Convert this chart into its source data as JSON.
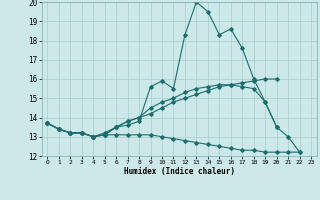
{
  "title": "",
  "xlabel": "Humidex (Indice chaleur)",
  "bg_color": "#cce8e8",
  "grid_color": "#aacccc",
  "line_color": "#1a6e6e",
  "xlim": [
    -0.5,
    23.5
  ],
  "ylim": [
    12,
    20
  ],
  "yticks": [
    12,
    13,
    14,
    15,
    16,
    17,
    18,
    19,
    20
  ],
  "xticks": [
    0,
    1,
    2,
    3,
    4,
    5,
    6,
    7,
    8,
    9,
    10,
    11,
    12,
    13,
    14,
    15,
    16,
    17,
    18,
    19,
    20,
    21,
    22,
    23
  ],
  "line1_x": [
    0,
    1,
    2,
    3,
    4,
    5,
    6,
    7,
    8,
    9,
    10,
    11,
    12,
    13,
    14,
    15,
    16,
    17,
    18,
    19,
    20,
    21,
    22
  ],
  "line1_y": [
    13.7,
    13.4,
    13.2,
    13.2,
    13.0,
    13.1,
    13.5,
    13.6,
    13.8,
    15.6,
    15.9,
    15.5,
    18.3,
    20.0,
    19.5,
    18.3,
    18.6,
    17.6,
    16.0,
    14.8,
    13.5,
    13.0,
    12.2
  ],
  "line2_x": [
    0,
    1,
    2,
    3,
    4,
    5,
    6,
    7,
    8,
    9,
    10,
    11,
    12,
    13,
    14,
    15,
    16,
    17,
    18,
    19,
    20
  ],
  "line2_y": [
    13.7,
    13.4,
    13.2,
    13.2,
    13.0,
    13.1,
    13.5,
    13.8,
    14.0,
    14.2,
    14.5,
    14.8,
    15.0,
    15.2,
    15.4,
    15.6,
    15.7,
    15.8,
    15.9,
    16.0,
    16.0
  ],
  "line3_x": [
    0,
    1,
    2,
    3,
    4,
    5,
    6,
    7,
    8,
    9,
    10,
    11,
    12,
    13,
    14,
    15,
    16,
    17,
    18,
    19,
    20,
    21,
    22
  ],
  "line3_y": [
    13.7,
    13.4,
    13.2,
    13.2,
    13.0,
    13.1,
    13.1,
    13.1,
    13.1,
    13.1,
    13.0,
    12.9,
    12.8,
    12.7,
    12.6,
    12.5,
    12.4,
    12.3,
    12.3,
    12.2,
    12.2,
    12.2,
    12.2
  ],
  "line4_x": [
    0,
    1,
    2,
    3,
    4,
    5,
    6,
    7,
    8,
    9,
    10,
    11,
    12,
    13,
    14,
    15,
    16,
    17,
    18,
    19,
    20
  ],
  "line4_y": [
    13.7,
    13.4,
    13.2,
    13.2,
    13.0,
    13.2,
    13.5,
    13.8,
    14.0,
    14.5,
    14.8,
    15.0,
    15.3,
    15.5,
    15.6,
    15.7,
    15.7,
    15.6,
    15.5,
    14.8,
    13.5
  ]
}
